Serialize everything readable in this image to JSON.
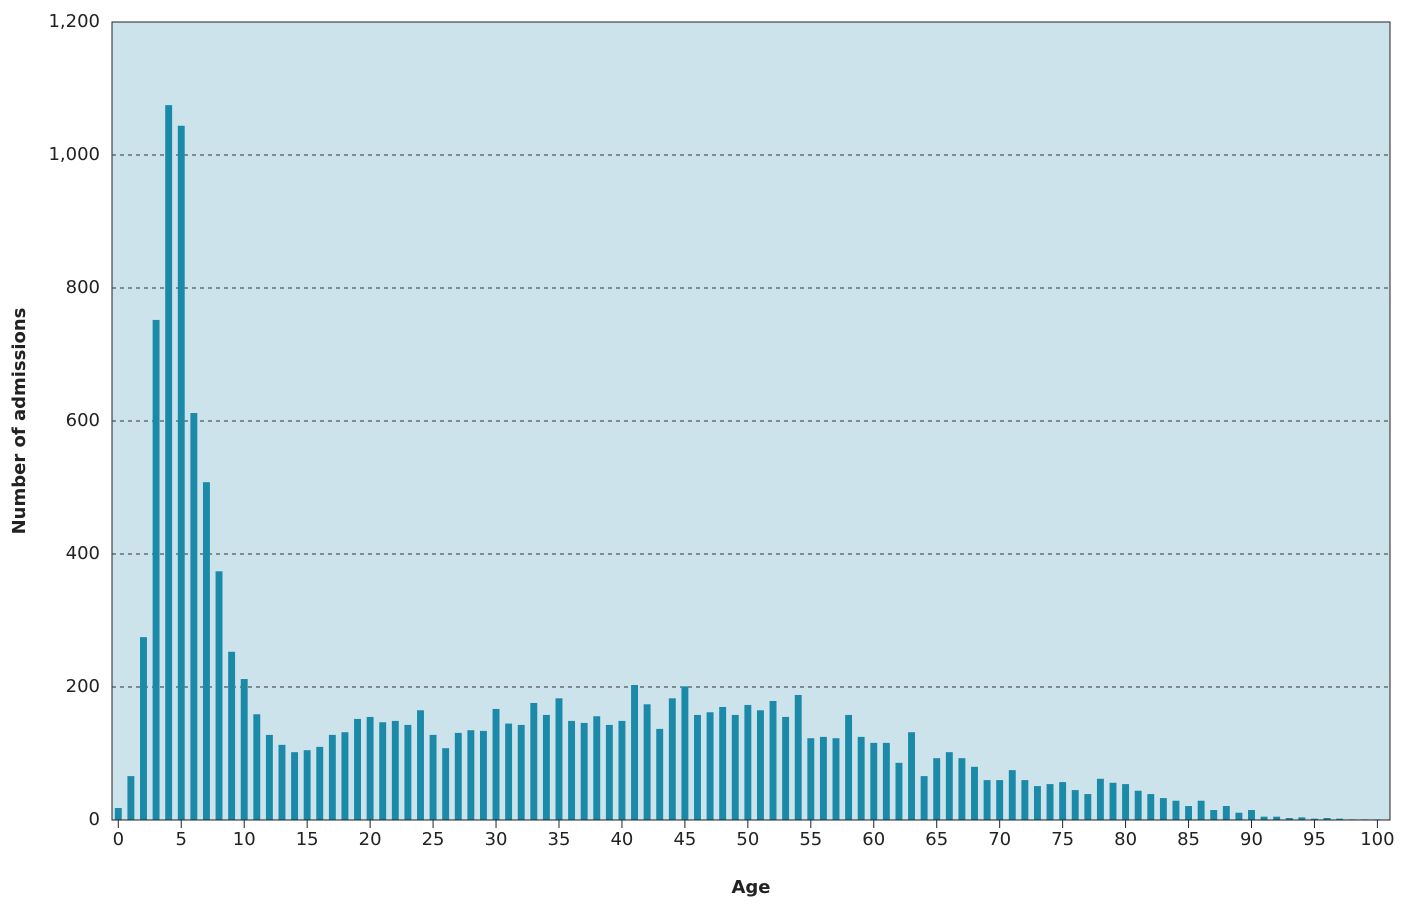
{
  "chart_data": {
    "type": "bar",
    "x_label": "Age",
    "y_label": "Number of admissions",
    "x": [
      0,
      1,
      2,
      3,
      4,
      5,
      6,
      7,
      8,
      9,
      10,
      11,
      12,
      13,
      14,
      15,
      16,
      17,
      18,
      19,
      20,
      21,
      22,
      23,
      24,
      25,
      26,
      27,
      28,
      29,
      30,
      31,
      32,
      33,
      34,
      35,
      36,
      37,
      38,
      39,
      40,
      41,
      42,
      43,
      44,
      45,
      46,
      47,
      48,
      49,
      50,
      51,
      52,
      53,
      54,
      55,
      56,
      57,
      58,
      59,
      60,
      61,
      62,
      63,
      64,
      65,
      66,
      67,
      68,
      69,
      70,
      71,
      72,
      73,
      74,
      75,
      76,
      77,
      78,
      79,
      80,
      81,
      82,
      83,
      84,
      85,
      86,
      87,
      88,
      89,
      90,
      91,
      92,
      93,
      94,
      95,
      96,
      97,
      98,
      99,
      100
    ],
    "values": [
      18,
      66,
      275,
      752,
      1075,
      1044,
      612,
      508,
      374,
      253,
      212,
      159,
      128,
      113,
      102,
      105,
      110,
      128,
      132,
      152,
      155,
      147,
      149,
      143,
      165,
      128,
      108,
      131,
      135,
      134,
      167,
      145,
      143,
      176,
      158,
      183,
      149,
      146,
      156,
      143,
      149,
      203,
      174,
      137,
      183,
      201,
      158,
      162,
      170,
      158,
      173,
      165,
      179,
      155,
      188,
      123,
      125,
      123,
      158,
      125,
      116,
      116,
      86,
      132,
      66,
      93,
      102,
      93,
      80,
      60,
      60,
      75,
      60,
      51,
      54,
      57,
      45,
      39,
      62,
      56,
      54,
      44,
      39,
      33,
      29,
      21,
      29,
      15,
      21,
      11,
      15,
      5,
      5,
      3,
      4,
      2,
      3,
      2,
      1,
      1,
      1
    ],
    "color": "#1a8aa8",
    "background": "#cde3ec",
    "xlim": [
      -0.5,
      101
    ],
    "xticks": [
      0,
      5,
      10,
      15,
      20,
      25,
      30,
      35,
      40,
      45,
      50,
      55,
      60,
      65,
      70,
      75,
      80,
      85,
      90,
      95,
      100
    ],
    "ylim": [
      0,
      1200
    ],
    "yticks": [
      0,
      200,
      400,
      600,
      800,
      {
        "value": 1000,
        "label": "1,000"
      },
      {
        "value": 1200,
        "label": "1,200"
      }
    ],
    "grid": true
  }
}
